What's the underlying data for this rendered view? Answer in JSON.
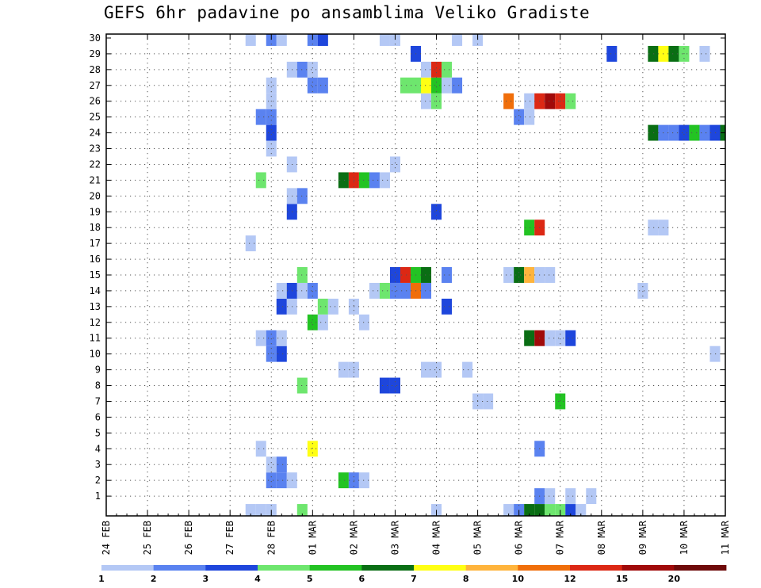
{
  "title": "GEFS 6hr padavine po ansamblima Veliko Gradiste",
  "chart_data": {
    "type": "heatmap",
    "title": "GEFS 6hr padavine po ansamblima Veliko Gradiste",
    "x_tick_labels": [
      "24 FEB",
      "25 FEB",
      "26 FEB",
      "27 FEB",
      "28 FEB",
      "01 MAR",
      "02 MAR",
      "03 MAR",
      "04 MAR",
      "05 MAR",
      "06 MAR",
      "07 MAR",
      "08 MAR",
      "09 MAR",
      "10 MAR",
      "11 MAR"
    ],
    "y_tick_labels": [
      "1",
      "2",
      "3",
      "4",
      "5",
      "6",
      "7",
      "8",
      "9",
      "10",
      "11",
      "12",
      "13",
      "14",
      "15",
      "16",
      "17",
      "18",
      "19",
      "20",
      "21",
      "22",
      "23",
      "24",
      "25",
      "26",
      "27",
      "28",
      "29",
      "30"
    ],
    "x_range_steps": [
      0,
      60
    ],
    "x_unit": "6-hour step from 24 FEB 00Z (4 steps per day)",
    "y_range": [
      0,
      30
    ],
    "grid": true,
    "legend_placement": "bottom",
    "levels": [
      1,
      2,
      3,
      4,
      5,
      6,
      7,
      8,
      10,
      12,
      15,
      20
    ],
    "colors": [
      "#b4c8f5",
      "#5a82f0",
      "#1e46dc",
      "#6ee66e",
      "#23c323",
      "#0a6e14",
      "#ffff14",
      "#ffb43c",
      "#f06e0a",
      "#dc2814",
      "#a00a0a",
      "#6e0a0a"
    ],
    "cells": [
      {
        "t": 14,
        "m": 0,
        "c": 0
      },
      {
        "t": 15,
        "m": 0,
        "c": 0
      },
      {
        "t": 16,
        "m": 0,
        "c": 0
      },
      {
        "t": 19,
        "m": 0,
        "c": 3
      },
      {
        "t": 32,
        "m": 0,
        "c": 0
      },
      {
        "t": 39,
        "m": 0,
        "c": 0
      },
      {
        "t": 40,
        "m": 0,
        "c": 1
      },
      {
        "t": 41,
        "m": 0,
        "c": 5
      },
      {
        "t": 42,
        "m": 0,
        "c": 5
      },
      {
        "t": 43,
        "m": 0,
        "c": 3
      },
      {
        "t": 44,
        "m": 0,
        "c": 3
      },
      {
        "t": 45,
        "m": 0,
        "c": 2
      },
      {
        "t": 46,
        "m": 0,
        "c": 0
      },
      {
        "t": 42,
        "m": 1,
        "c": 1
      },
      {
        "t": 43,
        "m": 1,
        "c": 0
      },
      {
        "t": 45,
        "m": 1,
        "c": 0
      },
      {
        "t": 47,
        "m": 1,
        "c": 0
      },
      {
        "t": 16,
        "m": 2,
        "c": 1
      },
      {
        "t": 17,
        "m": 2,
        "c": 1
      },
      {
        "t": 18,
        "m": 2,
        "c": 0
      },
      {
        "t": 23,
        "m": 2,
        "c": 4
      },
      {
        "t": 24,
        "m": 2,
        "c": 1
      },
      {
        "t": 25,
        "m": 2,
        "c": 0
      },
      {
        "t": 16,
        "m": 3,
        "c": 0
      },
      {
        "t": 17,
        "m": 3,
        "c": 1
      },
      {
        "t": 15,
        "m": 4,
        "c": 0
      },
      {
        "t": 20,
        "m": 4,
        "c": 6
      },
      {
        "t": 42,
        "m": 4,
        "c": 1
      },
      {
        "t": 44,
        "m": 7,
        "c": 4
      },
      {
        "t": 36,
        "m": 7,
        "c": 0
      },
      {
        "t": 37,
        "m": 7,
        "c": 0
      },
      {
        "t": 19,
        "m": 8,
        "c": 3
      },
      {
        "t": 27,
        "m": 8,
        "c": 2
      },
      {
        "t": 28,
        "m": 8,
        "c": 2
      },
      {
        "t": 23,
        "m": 9,
        "c": 0
      },
      {
        "t": 24,
        "m": 9,
        "c": 0
      },
      {
        "t": 31,
        "m": 9,
        "c": 0
      },
      {
        "t": 32,
        "m": 9,
        "c": 0
      },
      {
        "t": 35,
        "m": 9,
        "c": 0
      },
      {
        "t": 16,
        "m": 10,
        "c": 1
      },
      {
        "t": 17,
        "m": 10,
        "c": 2
      },
      {
        "t": 59,
        "m": 10,
        "c": 0
      },
      {
        "t": 15,
        "m": 11,
        "c": 0
      },
      {
        "t": 16,
        "m": 11,
        "c": 1
      },
      {
        "t": 17,
        "m": 11,
        "c": 0
      },
      {
        "t": 41,
        "m": 11,
        "c": 5
      },
      {
        "t": 42,
        "m": 11,
        "c": 10
      },
      {
        "t": 43,
        "m": 11,
        "c": 0
      },
      {
        "t": 44,
        "m": 11,
        "c": 0
      },
      {
        "t": 45,
        "m": 11,
        "c": 2
      },
      {
        "t": 20,
        "m": 12,
        "c": 4
      },
      {
        "t": 21,
        "m": 12,
        "c": 0
      },
      {
        "t": 25,
        "m": 12,
        "c": 0
      },
      {
        "t": 17,
        "m": 13,
        "c": 2
      },
      {
        "t": 18,
        "m": 13,
        "c": 0
      },
      {
        "t": 21,
        "m": 13,
        "c": 3
      },
      {
        "t": 22,
        "m": 13,
        "c": 0
      },
      {
        "t": 24,
        "m": 13,
        "c": 0
      },
      {
        "t": 33,
        "m": 13,
        "c": 2
      },
      {
        "t": 17,
        "m": 14,
        "c": 0
      },
      {
        "t": 18,
        "m": 14,
        "c": 2
      },
      {
        "t": 19,
        "m": 14,
        "c": 0
      },
      {
        "t": 20,
        "m": 14,
        "c": 1
      },
      {
        "t": 26,
        "m": 14,
        "c": 0
      },
      {
        "t": 27,
        "m": 14,
        "c": 3
      },
      {
        "t": 28,
        "m": 14,
        "c": 1
      },
      {
        "t": 29,
        "m": 14,
        "c": 1
      },
      {
        "t": 30,
        "m": 14,
        "c": 8
      },
      {
        "t": 31,
        "m": 14,
        "c": 1
      },
      {
        "t": 52,
        "m": 14,
        "c": 0
      },
      {
        "t": 19,
        "m": 15,
        "c": 3
      },
      {
        "t": 28,
        "m": 15,
        "c": 2
      },
      {
        "t": 29,
        "m": 15,
        "c": 9
      },
      {
        "t": 30,
        "m": 15,
        "c": 4
      },
      {
        "t": 31,
        "m": 15,
        "c": 5
      },
      {
        "t": 33,
        "m": 15,
        "c": 1
      },
      {
        "t": 39,
        "m": 15,
        "c": 0
      },
      {
        "t": 40,
        "m": 15,
        "c": 5
      },
      {
        "t": 41,
        "m": 15,
        "c": 7
      },
      {
        "t": 42,
        "m": 15,
        "c": 0
      },
      {
        "t": 43,
        "m": 15,
        "c": 0
      },
      {
        "t": 14,
        "m": 17,
        "c": 0
      },
      {
        "t": 41,
        "m": 18,
        "c": 4
      },
      {
        "t": 42,
        "m": 18,
        "c": 9
      },
      {
        "t": 53,
        "m": 18,
        "c": 0
      },
      {
        "t": 54,
        "m": 18,
        "c": 0
      },
      {
        "t": 18,
        "m": 19,
        "c": 2
      },
      {
        "t": 32,
        "m": 19,
        "c": 2
      },
      {
        "t": 18,
        "m": 20,
        "c": 0
      },
      {
        "t": 19,
        "m": 20,
        "c": 1
      },
      {
        "t": 15,
        "m": 21,
        "c": 3
      },
      {
        "t": 23,
        "m": 21,
        "c": 5
      },
      {
        "t": 24,
        "m": 21,
        "c": 9
      },
      {
        "t": 25,
        "m": 21,
        "c": 4
      },
      {
        "t": 26,
        "m": 21,
        "c": 1
      },
      {
        "t": 27,
        "m": 21,
        "c": 0
      },
      {
        "t": 18,
        "m": 22,
        "c": 0
      },
      {
        "t": 28,
        "m": 22,
        "c": 0
      },
      {
        "t": 16,
        "m": 23,
        "c": 0
      },
      {
        "t": 16,
        "m": 24,
        "c": 2
      },
      {
        "t": 53,
        "m": 24,
        "c": 5
      },
      {
        "t": 54,
        "m": 24,
        "c": 1
      },
      {
        "t": 55,
        "m": 24,
        "c": 1
      },
      {
        "t": 56,
        "m": 24,
        "c": 2
      },
      {
        "t": 57,
        "m": 24,
        "c": 4
      },
      {
        "t": 58,
        "m": 24,
        "c": 1
      },
      {
        "t": 59,
        "m": 24,
        "c": 2
      },
      {
        "t": 60,
        "m": 24,
        "c": 5
      },
      {
        "t": 15,
        "m": 25,
        "c": 1
      },
      {
        "t": 16,
        "m": 25,
        "c": 1
      },
      {
        "t": 40,
        "m": 25,
        "c": 1
      },
      {
        "t": 41,
        "m": 25,
        "c": 0
      },
      {
        "t": 16,
        "m": 26,
        "c": 0
      },
      {
        "t": 31,
        "m": 26,
        "c": 0
      },
      {
        "t": 32,
        "m": 26,
        "c": 3
      },
      {
        "t": 39,
        "m": 26,
        "c": 8
      },
      {
        "t": 41,
        "m": 26,
        "c": 0
      },
      {
        "t": 42,
        "m": 26,
        "c": 9
      },
      {
        "t": 43,
        "m": 26,
        "c": 10
      },
      {
        "t": 44,
        "m": 26,
        "c": 9
      },
      {
        "t": 45,
        "m": 26,
        "c": 3
      },
      {
        "t": 16,
        "m": 27,
        "c": 0
      },
      {
        "t": 20,
        "m": 27,
        "c": 1
      },
      {
        "t": 21,
        "m": 27,
        "c": 1
      },
      {
        "t": 29,
        "m": 27,
        "c": 3
      },
      {
        "t": 30,
        "m": 27,
        "c": 3
      },
      {
        "t": 31,
        "m": 27,
        "c": 6
      },
      {
        "t": 32,
        "m": 27,
        "c": 4
      },
      {
        "t": 33,
        "m": 27,
        "c": 0
      },
      {
        "t": 34,
        "m": 27,
        "c": 1
      },
      {
        "t": 18,
        "m": 28,
        "c": 0
      },
      {
        "t": 19,
        "m": 28,
        "c": 1
      },
      {
        "t": 20,
        "m": 28,
        "c": 0
      },
      {
        "t": 31,
        "m": 28,
        "c": 0
      },
      {
        "t": 32,
        "m": 28,
        "c": 9
      },
      {
        "t": 33,
        "m": 28,
        "c": 3
      },
      {
        "t": 30,
        "m": 29,
        "c": 2
      },
      {
        "t": 49,
        "m": 29,
        "c": 2
      },
      {
        "t": 53,
        "m": 29,
        "c": 5
      },
      {
        "t": 54,
        "m": 29,
        "c": 6
      },
      {
        "t": 55,
        "m": 29,
        "c": 5
      },
      {
        "t": 56,
        "m": 29,
        "c": 3
      },
      {
        "t": 58,
        "m": 29,
        "c": 0
      },
      {
        "t": 14,
        "m": 30,
        "c": 0
      },
      {
        "t": 16,
        "m": 30,
        "c": 1
      },
      {
        "t": 17,
        "m": 30,
        "c": 0
      },
      {
        "t": 20,
        "m": 30,
        "c": 1
      },
      {
        "t": 21,
        "m": 30,
        "c": 2
      },
      {
        "t": 27,
        "m": 30,
        "c": 0
      },
      {
        "t": 28,
        "m": 30,
        "c": 0
      },
      {
        "t": 34,
        "m": 30,
        "c": 0
      },
      {
        "t": 36,
        "m": 30,
        "c": 0
      }
    ]
  },
  "legend": {
    "labels": [
      "1",
      "2",
      "3",
      "4",
      "5",
      "6",
      "7",
      "8",
      "10",
      "12",
      "15",
      "20"
    ]
  }
}
